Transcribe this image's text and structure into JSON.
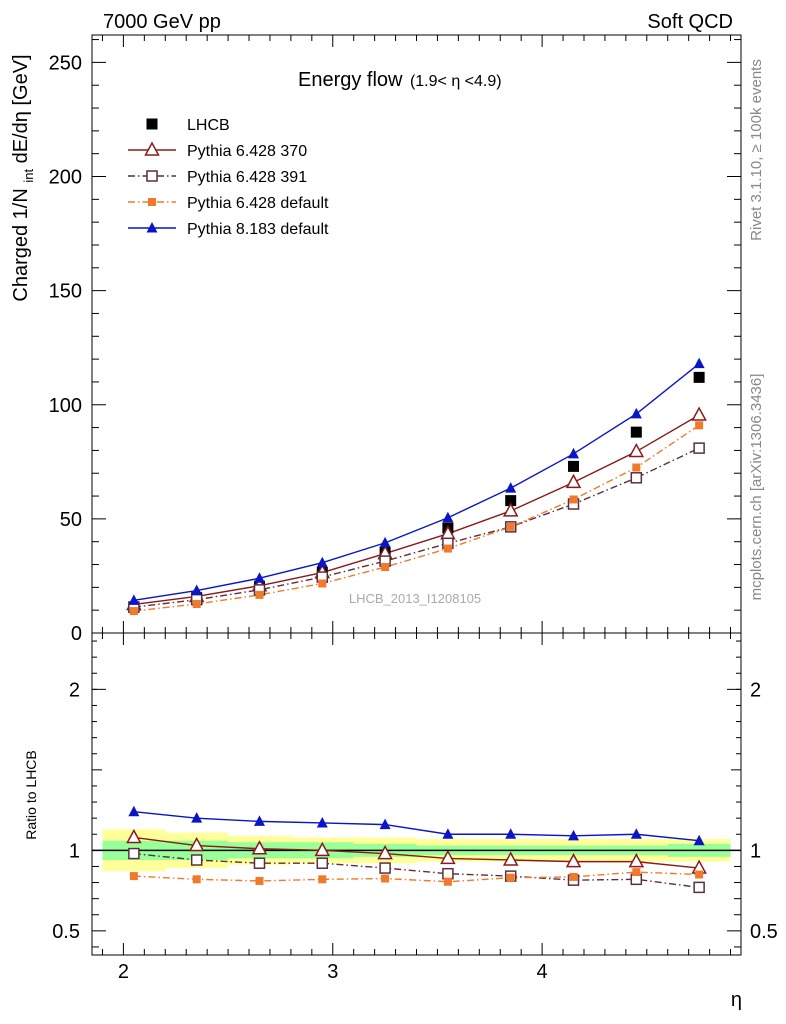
{
  "header": {
    "left": "7000 GeV pp",
    "right": "Soft QCD"
  },
  "side_labels": {
    "rivet": "Rivet 3.1.10, ≥ 100k events",
    "mcplots": "mcplots.cern.ch [arXiv:1306.3436]"
  },
  "watermark": "LHCB_2013_I1208105",
  "chart_data": [
    {
      "type": "line",
      "title_main": "Energy flow",
      "title_range": "(1.9< η <4.9)",
      "ylabel_parts": {
        "a": "Charged 1/N",
        "sub": "int",
        "b": " dE/dη [GeV]"
      },
      "xlim": [
        1.85,
        4.95
      ],
      "ylim": [
        0,
        262
      ],
      "yticks": [
        0,
        50,
        100,
        150,
        200,
        250
      ],
      "ytick_labels": [
        "0",
        "50",
        "100",
        "150",
        "200",
        "250"
      ],
      "x": [
        2.05,
        2.35,
        2.65,
        2.95,
        3.25,
        3.55,
        3.85,
        4.15,
        4.45,
        4.75
      ],
      "series": [
        {
          "name": "LHCB",
          "color": "#000000",
          "marker": "square-filled",
          "line": "none",
          "values": [
            11.5,
            15.5,
            20.5,
            26.5,
            35.5,
            46,
            58,
            73,
            88,
            112
          ]
        },
        {
          "name": "Pythia 6.428 370",
          "color": "#8b1a1a",
          "marker": "triangle-open",
          "line": "solid",
          "values": [
            12.5,
            16,
            20.7,
            26.5,
            34.8,
            43.5,
            53.5,
            66,
            79.5,
            95.5
          ]
        },
        {
          "name": "Pythia 6.428 391",
          "color": "#5a2f3f",
          "marker": "square-open",
          "line": "dashdot",
          "values": [
            11.3,
            14.6,
            18.9,
            24.5,
            31.5,
            39.3,
            46.5,
            56.5,
            68,
            81
          ]
        },
        {
          "name": "Pythia 6.428 default",
          "color": "#f07a2a",
          "marker": "square-filled-small",
          "line": "dashdot",
          "values": [
            9.6,
            12.7,
            16.7,
            21.7,
            28.9,
            37,
            46.5,
            58.5,
            72.5,
            91
          ]
        },
        {
          "name": "Pythia 8.183 default",
          "color": "#0a14c8",
          "marker": "triangle-filled",
          "line": "solid",
          "values": [
            14.3,
            18.6,
            24,
            30.8,
            39.5,
            50.5,
            63.5,
            78.5,
            96,
            118
          ]
        }
      ],
      "legend_placement": "top-left"
    },
    {
      "type": "line",
      "ylabel": "Ratio to LHCB",
      "ylim": [
        0.35,
        2.35
      ],
      "yticks": [
        0.5,
        1,
        2
      ],
      "ytick_labels": [
        "0.5",
        "1",
        "2"
      ],
      "xticks": [
        2,
        3,
        4
      ],
      "xtick_labels": [
        "2",
        "3",
        "4"
      ],
      "xlabel": "η",
      "x": [
        2.05,
        2.35,
        2.65,
        2.95,
        3.25,
        3.55,
        3.85,
        4.15,
        4.45,
        4.75
      ],
      "band_edges": [
        1.9,
        2.2,
        2.5,
        2.8,
        3.1,
        3.4,
        3.7,
        4.0,
        4.3,
        4.6,
        4.9
      ],
      "band_green": [
        [
          0.94,
          1.06
        ],
        [
          0.94,
          1.06
        ],
        [
          0.95,
          1.05
        ],
        [
          0.95,
          1.05
        ],
        [
          0.96,
          1.04
        ],
        [
          0.97,
          1.03
        ],
        [
          0.97,
          1.03
        ],
        [
          0.97,
          1.03
        ],
        [
          0.97,
          1.03
        ],
        [
          0.96,
          1.04
        ]
      ],
      "band_yellow": [
        [
          0.87,
          1.13
        ],
        [
          0.89,
          1.11
        ],
        [
          0.91,
          1.09
        ],
        [
          0.92,
          1.08
        ],
        [
          0.92,
          1.08
        ],
        [
          0.93,
          1.07
        ],
        [
          0.93,
          1.07
        ],
        [
          0.93,
          1.07
        ],
        [
          0.93,
          1.07
        ],
        [
          0.93,
          1.07
        ]
      ],
      "series": [
        {
          "name": "Pythia 6.428 370",
          "values": [
            1.08,
            1.03,
            1.01,
            1.0,
            0.98,
            0.95,
            0.94,
            0.93,
            0.93,
            0.89
          ]
        },
        {
          "name": "Pythia 6.428 391",
          "values": [
            0.98,
            0.94,
            0.92,
            0.92,
            0.89,
            0.855,
            0.84,
            0.815,
            0.82,
            0.77
          ]
        },
        {
          "name": "Pythia 6.428 default",
          "values": [
            0.84,
            0.82,
            0.81,
            0.82,
            0.825,
            0.805,
            0.83,
            0.835,
            0.865,
            0.85
          ]
        },
        {
          "name": "Pythia 8.183 default",
          "values": [
            1.24,
            1.2,
            1.18,
            1.17,
            1.16,
            1.1,
            1.1,
            1.09,
            1.1,
            1.06
          ]
        }
      ]
    }
  ]
}
